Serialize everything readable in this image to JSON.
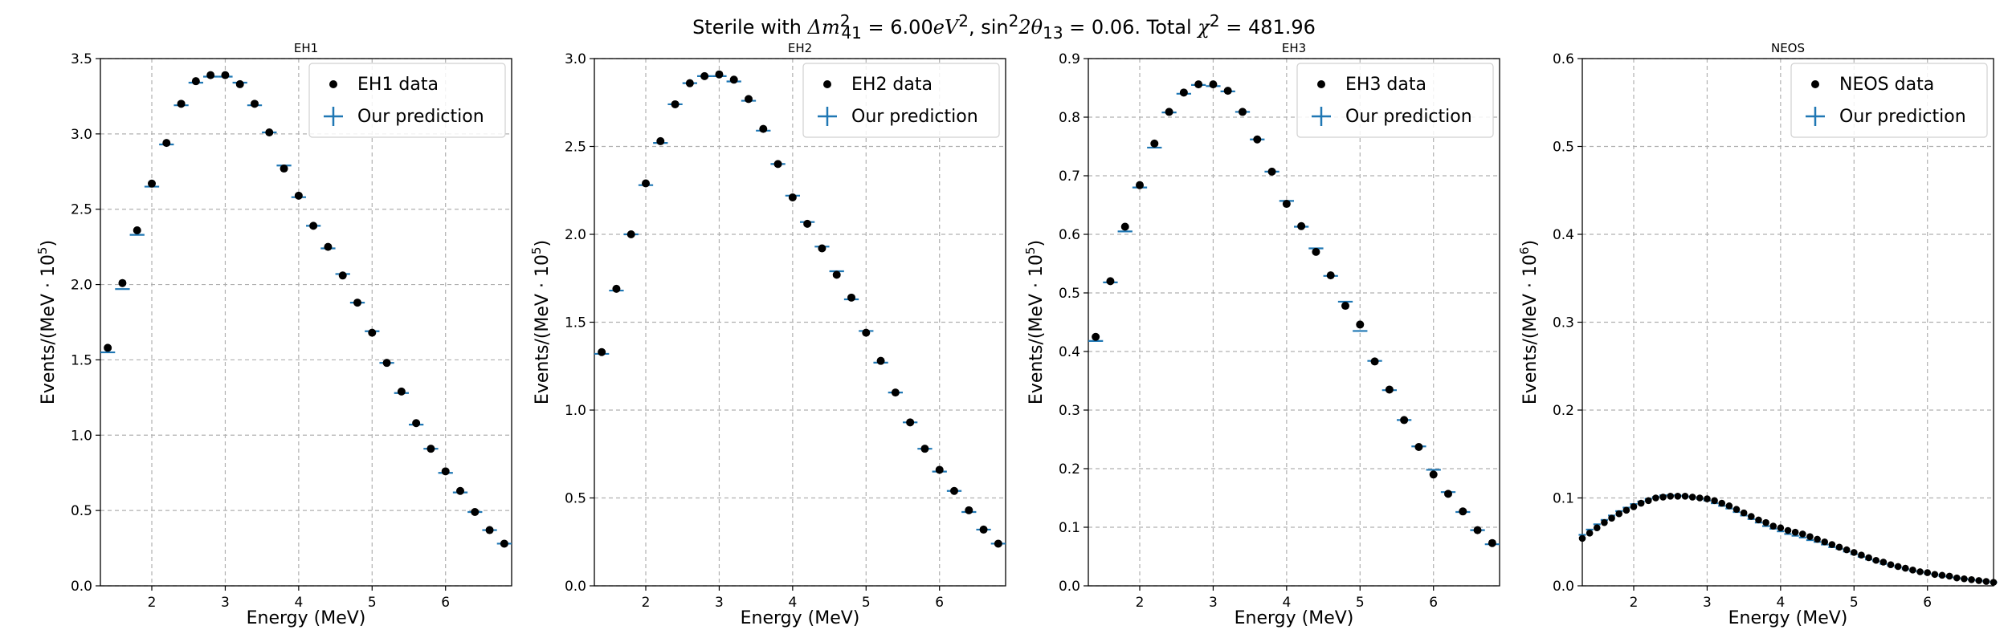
{
  "suptitle": {
    "plain_prefix": "Sterile with ",
    "dm_label": "Δm",
    "dm_sub": "41",
    "dm_sup": "2",
    "dm_value": " = 6.00",
    "dm_unit": "eV",
    "dm_unit_sup": "2",
    "sin_label": ", sin",
    "sin_sup": "2",
    "theta_label": "2θ",
    "theta_sub": "13",
    "theta_value": " = 0.06. Total ",
    "chi_label": "χ",
    "chi_sup": "2",
    "chi_value": " = 481.96"
  },
  "colors": {
    "data": "#000000",
    "prediction": "#1f77b4",
    "grid": "#b0b0b0"
  },
  "chart_data": [
    {
      "type": "scatter",
      "title": "EH1",
      "xlabel": "Energy (MeV)",
      "ylabel": {
        "main": "Events/(MeV · 10",
        "sup": "5",
        "close": ")"
      },
      "xlim": [
        1.3,
        6.9
      ],
      "ylim": [
        0,
        3.5
      ],
      "xticks": [
        2,
        3,
        4,
        5,
        6
      ],
      "yticks": [
        0.0,
        0.5,
        1.0,
        1.5,
        2.0,
        2.5,
        3.0,
        3.5
      ],
      "ytick_decimals": 1,
      "grid": true,
      "legend": "top-right",
      "series": [
        {
          "name": "EH1 data",
          "marker": "dot",
          "x": [
            1.4,
            1.6,
            1.8,
            2.0,
            2.2,
            2.4,
            2.6,
            2.8,
            3.0,
            3.2,
            3.4,
            3.6,
            3.8,
            4.0,
            4.2,
            4.4,
            4.6,
            4.8,
            5.0,
            5.2,
            5.4,
            5.6,
            5.8,
            6.0,
            6.2,
            6.4,
            6.6,
            6.8
          ],
          "y": [
            1.58,
            2.01,
            2.36,
            2.67,
            2.94,
            3.2,
            3.35,
            3.39,
            3.39,
            3.33,
            3.2,
            3.01,
            2.77,
            2.59,
            2.39,
            2.25,
            2.06,
            1.88,
            1.68,
            1.48,
            1.29,
            1.08,
            0.91,
            0.76,
            0.63,
            0.49,
            0.37,
            0.28
          ]
        },
        {
          "name": "Our prediction",
          "marker": "cross",
          "x": [
            1.4,
            1.6,
            1.8,
            2.0,
            2.2,
            2.4,
            2.6,
            2.8,
            3.0,
            3.2,
            3.4,
            3.6,
            3.8,
            4.0,
            4.2,
            4.4,
            4.6,
            4.8,
            5.0,
            5.2,
            5.4,
            5.6,
            5.8,
            6.0,
            6.2,
            6.4,
            6.6,
            6.8
          ],
          "y": [
            1.55,
            1.97,
            2.33,
            2.65,
            2.93,
            3.19,
            3.34,
            3.38,
            3.38,
            3.34,
            3.19,
            3.01,
            2.79,
            2.58,
            2.39,
            2.24,
            2.07,
            1.88,
            1.69,
            1.48,
            1.28,
            1.07,
            0.91,
            0.75,
            0.62,
            0.49,
            0.37,
            0.28
          ]
        }
      ]
    },
    {
      "type": "scatter",
      "title": "EH2",
      "xlabel": "Energy (MeV)",
      "ylabel": {
        "main": "Events/(MeV · 10",
        "sup": "5",
        "close": ")"
      },
      "xlim": [
        1.3,
        6.9
      ],
      "ylim": [
        0,
        3.0
      ],
      "xticks": [
        2,
        3,
        4,
        5,
        6
      ],
      "yticks": [
        0.0,
        0.5,
        1.0,
        1.5,
        2.0,
        2.5,
        3.0
      ],
      "ytick_decimals": 1,
      "grid": true,
      "legend": "top-right",
      "series": [
        {
          "name": "EH2 data",
          "marker": "dot",
          "x": [
            1.4,
            1.6,
            1.8,
            2.0,
            2.2,
            2.4,
            2.6,
            2.8,
            3.0,
            3.2,
            3.4,
            3.6,
            3.8,
            4.0,
            4.2,
            4.4,
            4.6,
            4.8,
            5.0,
            5.2,
            5.4,
            5.6,
            5.8,
            6.0,
            6.2,
            6.4,
            6.6,
            6.8
          ],
          "y": [
            1.33,
            1.69,
            2.0,
            2.29,
            2.53,
            2.74,
            2.86,
            2.9,
            2.91,
            2.88,
            2.77,
            2.6,
            2.4,
            2.21,
            2.06,
            1.92,
            1.77,
            1.64,
            1.44,
            1.28,
            1.1,
            0.93,
            0.78,
            0.66,
            0.54,
            0.43,
            0.32,
            0.24
          ]
        },
        {
          "name": "Our prediction",
          "marker": "cross",
          "x": [
            1.4,
            1.6,
            1.8,
            2.0,
            2.2,
            2.4,
            2.6,
            2.8,
            3.0,
            3.2,
            3.4,
            3.6,
            3.8,
            4.0,
            4.2,
            4.4,
            4.6,
            4.8,
            5.0,
            5.2,
            5.4,
            5.6,
            5.8,
            6.0,
            6.2,
            6.4,
            6.6,
            6.8
          ],
          "y": [
            1.32,
            1.68,
            2.0,
            2.28,
            2.52,
            2.74,
            2.86,
            2.9,
            2.9,
            2.87,
            2.76,
            2.59,
            2.4,
            2.22,
            2.07,
            1.93,
            1.79,
            1.63,
            1.45,
            1.27,
            1.1,
            0.93,
            0.78,
            0.65,
            0.54,
            0.42,
            0.32,
            0.24
          ]
        }
      ]
    },
    {
      "type": "scatter",
      "title": "EH3",
      "xlabel": "Energy (MeV)",
      "ylabel": {
        "main": "Events/(MeV · 10",
        "sup": "5",
        "close": ")"
      },
      "xlim": [
        1.3,
        6.9
      ],
      "ylim": [
        0,
        0.9
      ],
      "xticks": [
        2,
        3,
        4,
        5,
        6
      ],
      "yticks": [
        0.0,
        0.1,
        0.2,
        0.3,
        0.4,
        0.5,
        0.6,
        0.7,
        0.8,
        0.9
      ],
      "ytick_decimals": 1,
      "grid": true,
      "legend": "top-right",
      "series": [
        {
          "name": "EH3 data",
          "marker": "dot",
          "x": [
            1.4,
            1.6,
            1.8,
            2.0,
            2.2,
            2.4,
            2.6,
            2.8,
            3.0,
            3.2,
            3.4,
            3.6,
            3.8,
            4.0,
            4.2,
            4.4,
            4.6,
            4.8,
            5.0,
            5.2,
            5.4,
            5.6,
            5.8,
            6.0,
            6.2,
            6.4,
            6.6,
            6.8
          ],
          "y": [
            0.425,
            0.52,
            0.613,
            0.684,
            0.755,
            0.809,
            0.842,
            0.856,
            0.856,
            0.845,
            0.809,
            0.762,
            0.707,
            0.652,
            0.614,
            0.57,
            0.53,
            0.478,
            0.446,
            0.383,
            0.335,
            0.283,
            0.237,
            0.19,
            0.157,
            0.127,
            0.095,
            0.073
          ]
        },
        {
          "name": "Our prediction",
          "marker": "cross",
          "x": [
            1.4,
            1.6,
            1.8,
            2.0,
            2.2,
            2.4,
            2.6,
            2.8,
            3.0,
            3.2,
            3.4,
            3.6,
            3.8,
            4.0,
            4.2,
            4.4,
            4.6,
            4.8,
            5.0,
            5.2,
            5.4,
            5.6,
            5.8,
            6.0,
            6.2,
            6.4,
            6.6,
            6.8
          ],
          "y": [
            0.418,
            0.518,
            0.605,
            0.68,
            0.748,
            0.808,
            0.84,
            0.855,
            0.853,
            0.844,
            0.809,
            0.762,
            0.707,
            0.657,
            0.613,
            0.576,
            0.529,
            0.485,
            0.435,
            0.384,
            0.334,
            0.283,
            0.238,
            0.198,
            0.16,
            0.126,
            0.095,
            0.071
          ]
        }
      ]
    },
    {
      "type": "scatter",
      "title": "NEOS",
      "xlabel": "Energy (MeV)",
      "ylabel": {
        "main": "Events/(MeV · 10",
        "sup": "6",
        "close": ")"
      },
      "xlim": [
        1.3,
        6.9
      ],
      "ylim": [
        0,
        0.6
      ],
      "xticks": [
        2,
        3,
        4,
        5,
        6
      ],
      "yticks": [
        0.0,
        0.1,
        0.2,
        0.3,
        0.4,
        0.5,
        0.6
      ],
      "ytick_decimals": 1,
      "grid": true,
      "legend": "top-right",
      "series": [
        {
          "name": "NEOS data",
          "marker": "dot",
          "x": [
            1.3,
            1.4,
            1.5,
            1.6,
            1.7,
            1.8,
            1.9,
            2.0,
            2.1,
            2.2,
            2.3,
            2.4,
            2.5,
            2.6,
            2.7,
            2.8,
            2.9,
            3.0,
            3.1,
            3.2,
            3.3,
            3.4,
            3.5,
            3.6,
            3.7,
            3.8,
            3.9,
            4.0,
            4.1,
            4.2,
            4.3,
            4.4,
            4.5,
            4.6,
            4.7,
            4.8,
            4.9,
            5.0,
            5.1,
            5.2,
            5.3,
            5.4,
            5.5,
            5.6,
            5.7,
            5.8,
            5.9,
            6.0,
            6.1,
            6.2,
            6.3,
            6.4,
            6.5,
            6.6,
            6.7,
            6.8,
            6.9
          ],
          "y": [
            0.054,
            0.06,
            0.066,
            0.072,
            0.077,
            0.082,
            0.086,
            0.09,
            0.094,
            0.097,
            0.1,
            0.101,
            0.102,
            0.102,
            0.102,
            0.101,
            0.1,
            0.099,
            0.097,
            0.094,
            0.091,
            0.087,
            0.083,
            0.079,
            0.075,
            0.072,
            0.068,
            0.066,
            0.063,
            0.061,
            0.059,
            0.056,
            0.053,
            0.05,
            0.047,
            0.044,
            0.041,
            0.038,
            0.035,
            0.032,
            0.029,
            0.027,
            0.024,
            0.022,
            0.02,
            0.018,
            0.016,
            0.015,
            0.013,
            0.012,
            0.011,
            0.009,
            0.008,
            0.007,
            0.006,
            0.005,
            0.004
          ]
        },
        {
          "name": "Our prediction",
          "marker": "cross",
          "x": [
            1.3,
            1.4,
            1.5,
            1.6,
            1.7,
            1.8,
            1.9,
            2.0,
            2.1,
            2.2,
            2.3,
            2.4,
            2.5,
            2.6,
            2.7,
            2.8,
            2.9,
            3.0,
            3.1,
            3.2,
            3.3,
            3.4,
            3.5,
            3.6,
            3.7,
            3.8,
            3.9,
            4.0,
            4.1,
            4.2,
            4.3,
            4.4,
            4.5,
            4.6,
            4.7,
            4.8,
            4.9,
            5.0,
            5.1,
            5.2,
            5.3,
            5.4,
            5.5,
            5.6,
            5.7,
            5.8,
            5.9,
            6.0,
            6.1,
            6.2,
            6.3,
            6.4,
            6.5,
            6.6,
            6.7,
            6.8,
            6.9
          ],
          "y": [
            0.058,
            0.064,
            0.07,
            0.075,
            0.08,
            0.085,
            0.089,
            0.093,
            0.096,
            0.099,
            0.101,
            0.103,
            0.103,
            0.103,
            0.102,
            0.101,
            0.099,
            0.097,
            0.094,
            0.091,
            0.088,
            0.084,
            0.08,
            0.076,
            0.072,
            0.068,
            0.065,
            0.062,
            0.059,
            0.057,
            0.055,
            0.052,
            0.05,
            0.047,
            0.044,
            0.042,
            0.039,
            0.036,
            0.033,
            0.03,
            0.028,
            0.025,
            0.023,
            0.021,
            0.019,
            0.017,
            0.016,
            0.014,
            0.013,
            0.011,
            0.01,
            0.009,
            0.008,
            0.007,
            0.006,
            0.005,
            0.004
          ]
        }
      ]
    }
  ]
}
